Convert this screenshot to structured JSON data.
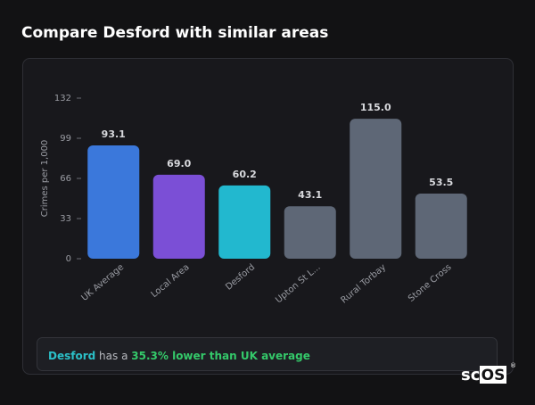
{
  "chart_data": {
    "type": "bar",
    "title": "Compare Desford with similar areas",
    "y_label": "Crimes per 1,000",
    "categories": [
      "UK Average",
      "Local Area",
      "Desford",
      "Upton St L...",
      "Rural Torbay",
      "Stone Cross"
    ],
    "values": [
      93.1,
      69.0,
      60.2,
      43.1,
      115.0,
      53.5
    ],
    "value_labels": [
      "93.1",
      "69.0",
      "60.2",
      "43.1",
      "115.0",
      "53.5"
    ],
    "colors": [
      "#3b78db",
      "#7b4fd6",
      "#22b8cf",
      "#5e6776",
      "#5e6776",
      "#5e6776"
    ],
    "ylim": [
      0,
      132
    ],
    "yticks": [
      0,
      33,
      66,
      99,
      132
    ],
    "grid": false
  },
  "summary": {
    "area": "Desford",
    "middle": "has a",
    "highlight": "35.3% lower than UK average"
  },
  "logo": {
    "prefix": "sc",
    "boxed": "OS",
    "mark": "®"
  }
}
